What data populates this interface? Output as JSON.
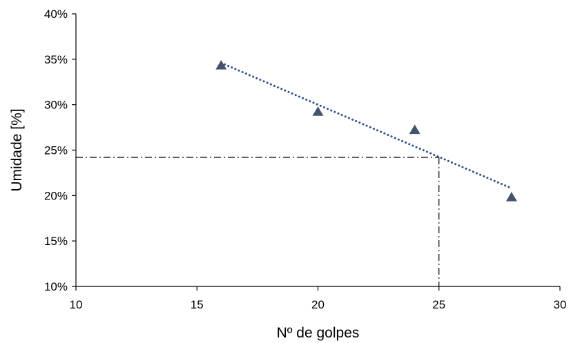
{
  "chart_data": {
    "type": "scatter",
    "xlabel": "Nº de golpes",
    "ylabel": "Umidade [%]",
    "xlim": [
      10,
      30
    ],
    "ylim": [
      10,
      40
    ],
    "x_ticks": [
      "10",
      "15",
      "20",
      "25",
      "30"
    ],
    "y_ticks": [
      "10%",
      "15%",
      "20%",
      "25%",
      "30%",
      "35%",
      "40%"
    ],
    "grid": false,
    "legend": "none",
    "series": [
      {
        "marker": "triangle",
        "color": "#44546A",
        "points": [
          {
            "x": 16,
            "y": 34.3
          },
          {
            "x": 20,
            "y": 29.2
          },
          {
            "x": 24,
            "y": 27.2
          },
          {
            "x": 28,
            "y": 19.8
          }
        ]
      }
    ],
    "trendline": {
      "style": "dotted",
      "color": "#2F4F8F",
      "from": {
        "x": 16,
        "y": 34.6
      },
      "to": {
        "x": 28,
        "y": 20.8
      }
    },
    "reference_lines": {
      "style": "dash-dot",
      "color": "#000000",
      "x": 25,
      "y": 24.2
    }
  }
}
